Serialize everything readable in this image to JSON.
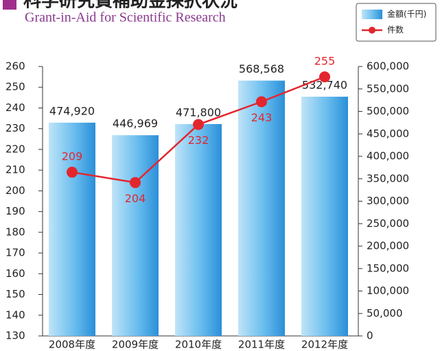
{
  "chart_data": {
    "type": "combo",
    "title": "科学研究費補助金採択状況",
    "subtitle": "Grant-in-Aid for Scientific Research",
    "categories": [
      "2008年度",
      "2009年度",
      "2010年度",
      "2011年度",
      "2012年度"
    ],
    "series": [
      {
        "name": "金額(千円)",
        "type": "bar",
        "axis": "y2",
        "color": "#3d9ee0",
        "values": [
          474920,
          446969,
          471800,
          568568,
          532740
        ],
        "value_labels": [
          "474,920",
          "446,969",
          "471,800",
          "568,568",
          "532,740"
        ]
      },
      {
        "name": "件数",
        "type": "line",
        "axis": "y",
        "color": "#e3262e",
        "values": [
          209,
          204,
          232,
          243,
          255
        ]
      }
    ],
    "ylim": [
      130,
      260
    ],
    "yticks": [
      130,
      140,
      150,
      160,
      170,
      180,
      190,
      200,
      210,
      220,
      230,
      240,
      250,
      260
    ],
    "y2lim": [
      0,
      600000
    ],
    "y2ticks": [
      0,
      {
        "value": 50000,
        "label": "50,000"
      },
      {
        "value": 100000,
        "label": "100,000"
      },
      {
        "value": 150000,
        "label": "150,000"
      },
      {
        "value": 200000,
        "label": "200,000"
      },
      {
        "value": 250000,
        "label": "250,000"
      },
      {
        "value": 300000,
        "label": "300,000"
      },
      {
        "value": 350000,
        "label": "350,000"
      },
      {
        "value": 400000,
        "label": "400,000"
      },
      {
        "value": 450000,
        "label": "450,000"
      },
      {
        "value": 500000,
        "label": "500,000"
      },
      {
        "value": 550000,
        "label": "550,000"
      },
      {
        "value": 600000,
        "label": "600,000"
      }
    ],
    "legend": "top-right"
  }
}
